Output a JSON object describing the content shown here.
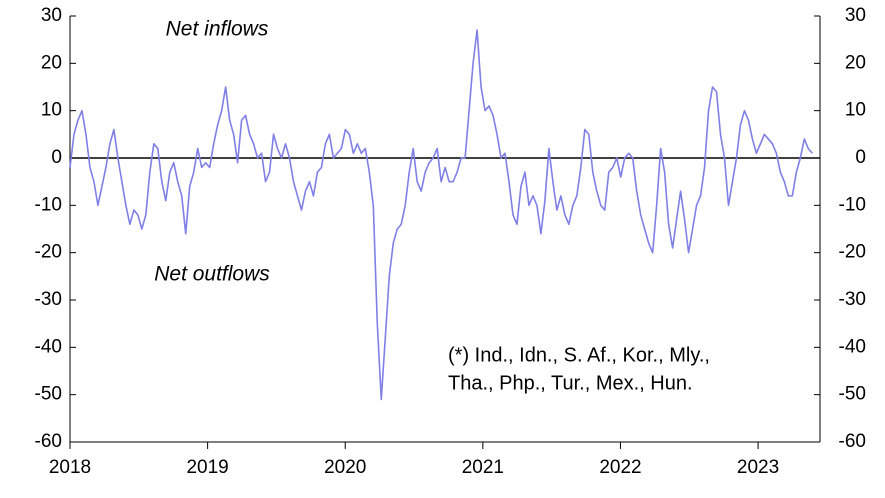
{
  "chart_data": {
    "type": "line",
    "annotations": [
      "Net inflows",
      "Net outflows",
      "(*) Ind., Idn., S. Af., Kor., Mly.,",
      "Tha., Php., Tur., Mex., Hun."
    ],
    "x": [
      2018,
      2018.029,
      2018.058,
      2018.087,
      2018.116,
      2018.145,
      2018.174,
      2018.203,
      2018.232,
      2018.261,
      2018.29,
      2018.319,
      2018.348,
      2018.377,
      2018.406,
      2018.435,
      2018.464,
      2018.493,
      2018.522,
      2018.551,
      2018.58,
      2018.609,
      2018.638,
      2018.667,
      2018.696,
      2018.725,
      2018.754,
      2018.783,
      2018.812,
      2018.841,
      2018.87,
      2018.899,
      2018.928,
      2018.957,
      2018.986,
      2019.015,
      2019.044,
      2019.073,
      2019.102,
      2019.131,
      2019.16,
      2019.189,
      2019.218,
      2019.247,
      2019.276,
      2019.305,
      2019.334,
      2019.363,
      2019.392,
      2019.421,
      2019.45,
      2019.479,
      2019.508,
      2019.537,
      2019.566,
      2019.595,
      2019.624,
      2019.653,
      2019.682,
      2019.711,
      2019.74,
      2019.769,
      2019.798,
      2019.827,
      2019.856,
      2019.885,
      2019.914,
      2019.943,
      2019.972,
      2020.001,
      2020.03,
      2020.059,
      2020.088,
      2020.117,
      2020.146,
      2020.175,
      2020.204,
      2020.233,
      2020.262,
      2020.291,
      2020.32,
      2020.349,
      2020.378,
      2020.407,
      2020.436,
      2020.465,
      2020.494,
      2020.523,
      2020.552,
      2020.581,
      2020.61,
      2020.639,
      2020.668,
      2020.697,
      2020.726,
      2020.755,
      2020.784,
      2020.813,
      2020.842,
      2020.871,
      2020.9,
      2020.929,
      2020.958,
      2020.987,
      2021.016,
      2021.045,
      2021.074,
      2021.103,
      2021.132,
      2021.161,
      2021.19,
      2021.219,
      2021.248,
      2021.277,
      2021.306,
      2021.335,
      2021.364,
      2021.393,
      2021.422,
      2021.451,
      2021.48,
      2021.509,
      2021.538,
      2021.567,
      2021.596,
      2021.625,
      2021.654,
      2021.683,
      2021.712,
      2021.741,
      2021.77,
      2021.799,
      2021.828,
      2021.857,
      2021.886,
      2021.915,
      2021.944,
      2021.973,
      2022.002,
      2022.031,
      2022.06,
      2022.089,
      2022.118,
      2022.147,
      2022.176,
      2022.205,
      2022.234,
      2022.263,
      2022.292,
      2022.321,
      2022.35,
      2022.379,
      2022.408,
      2022.437,
      2022.466,
      2022.495,
      2022.524,
      2022.553,
      2022.582,
      2022.611,
      2022.64,
      2022.669,
      2022.698,
      2022.727,
      2022.756,
      2022.785,
      2022.814,
      2022.843,
      2022.872,
      2022.901,
      2022.93,
      2022.959,
      2022.988,
      2023.017,
      2023.046,
      2023.075,
      2023.104,
      2023.133,
      2023.162,
      2023.191,
      2023.22,
      2023.249,
      2023.278,
      2023.307,
      2023.336,
      2023.365,
      2023.394
    ],
    "series": [
      {
        "color": "#7f7fe8",
        "values": [
          -2,
          5,
          8,
          10,
          5,
          -2,
          -5,
          -10,
          -6,
          -2,
          3,
          6,
          0,
          -5,
          -10,
          -14,
          -11,
          -12,
          -15,
          -12,
          -3,
          3,
          2,
          -5,
          -9,
          -3,
          -1,
          -5,
          -8,
          -16,
          -6,
          -3,
          2,
          -2,
          -1,
          -2,
          3,
          7,
          10,
          15,
          8,
          5,
          -1,
          8,
          9,
          5,
          3,
          0,
          1,
          -5,
          -3,
          5,
          2,
          0,
          3,
          0,
          -5,
          -8,
          -11,
          -7,
          -5,
          -8,
          -3,
          -2,
          3,
          5,
          0,
          1,
          2,
          6,
          5,
          1,
          3,
          1,
          2,
          -3,
          -10,
          -35,
          -51,
          -38,
          -25,
          -18,
          -15,
          -14,
          -10,
          -3,
          2,
          -5,
          -7,
          -3,
          -1,
          0,
          2,
          -5,
          -2,
          -5,
          -5,
          -3,
          0,
          0,
          10,
          20,
          27,
          15,
          10,
          11,
          9,
          5,
          0,
          1,
          -5,
          -12,
          -14,
          -6,
          -3,
          -10,
          -8,
          -10,
          -16,
          -9,
          2,
          -5,
          -11,
          -8,
          -12,
          -14,
          -10,
          -8,
          -2,
          6,
          5,
          -3,
          -7,
          -10,
          -11,
          -3,
          -2,
          0,
          -4,
          0,
          1,
          0,
          -7,
          -12,
          -15,
          -18,
          -20,
          -10,
          2,
          -3,
          -14,
          -19,
          -13,
          -7,
          -13,
          -20,
          -15,
          -10,
          -8,
          -2,
          10,
          15,
          14,
          5,
          0,
          -10,
          -5,
          0,
          7,
          10,
          8,
          4,
          1,
          3,
          5,
          4,
          3,
          1,
          -3,
          -5,
          -8,
          -8,
          -3,
          0,
          4,
          2,
          1
        ]
      }
    ],
    "xlim": [
      2018,
      2023.45
    ],
    "xticks": [
      2018,
      2019,
      2020,
      2021,
      2022,
      2023
    ],
    "ylim": [
      -60,
      30
    ],
    "yticks": [
      -60,
      -50,
      -40,
      -30,
      -20,
      -10,
      0,
      10,
      20,
      30
    ],
    "y2lim": [
      -60,
      30
    ],
    "y2ticks": [
      -60,
      -50,
      -40,
      -30,
      -20,
      -10,
      0,
      10,
      20,
      30
    ],
    "zero_line": true
  }
}
